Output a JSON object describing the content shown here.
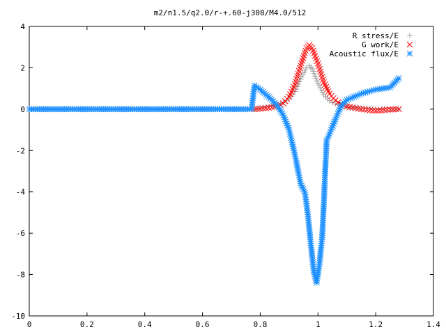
{
  "chart_data": {
    "type": "scatter",
    "title": "m2/n1.5/q2.0/r-+.60-j308/M4.0/512",
    "xlabel": "",
    "ylabel": "",
    "xlim": [
      0,
      1.4
    ],
    "ylim": [
      -10,
      4
    ],
    "x_ticks": [
      "0",
      "0.2",
      "0.4",
      "0.6",
      "0.8",
      "1",
      "1.2",
      "1.4"
    ],
    "x_tick_values": [
      0,
      0.2,
      0.4,
      0.6,
      0.8,
      1.0,
      1.2,
      1.4
    ],
    "y_ticks": [
      "4",
      "2",
      "0",
      "-2",
      "-4",
      "-6",
      "-8",
      "-10"
    ],
    "y_tick_values": [
      4,
      2,
      0,
      -2,
      -4,
      -6,
      -8,
      -10
    ],
    "grid": false,
    "legend_position": "top-right",
    "series": [
      {
        "name": "R stress/E",
        "marker": "+",
        "color": "#a0a0a0",
        "points": [
          [
            0.78,
            0.0
          ],
          [
            0.8,
            0.05
          ],
          [
            0.82,
            0.1
          ],
          [
            0.84,
            0.15
          ],
          [
            0.86,
            0.22
          ],
          [
            0.88,
            0.32
          ],
          [
            0.9,
            0.5
          ],
          [
            0.92,
            0.85
          ],
          [
            0.94,
            1.45
          ],
          [
            0.96,
            2.0
          ],
          [
            0.97,
            2.1
          ],
          [
            0.98,
            1.95
          ],
          [
            1.0,
            1.25
          ],
          [
            1.02,
            0.7
          ],
          [
            1.04,
            0.4
          ],
          [
            1.06,
            0.25
          ],
          [
            1.08,
            0.16
          ],
          [
            1.1,
            0.1
          ],
          [
            1.15,
            0.05
          ],
          [
            1.2,
            0.02
          ],
          [
            1.25,
            0.0
          ],
          [
            1.28,
            0.0
          ]
        ]
      },
      {
        "name": "G work/E",
        "marker": "x",
        "color": "#ff0000",
        "points": [
          [
            0.78,
            0.0
          ],
          [
            0.8,
            0.02
          ],
          [
            0.82,
            0.05
          ],
          [
            0.84,
            0.09
          ],
          [
            0.86,
            0.15
          ],
          [
            0.88,
            0.28
          ],
          [
            0.9,
            0.6
          ],
          [
            0.92,
            1.2
          ],
          [
            0.94,
            2.1
          ],
          [
            0.96,
            2.95
          ],
          [
            0.97,
            3.1
          ],
          [
            0.98,
            2.95
          ],
          [
            1.0,
            2.2
          ],
          [
            1.02,
            1.3
          ],
          [
            1.04,
            0.75
          ],
          [
            1.06,
            0.42
          ],
          [
            1.08,
            0.25
          ],
          [
            1.1,
            0.13
          ],
          [
            1.15,
            0.0
          ],
          [
            1.2,
            -0.08
          ],
          [
            1.25,
            -0.02
          ],
          [
            1.28,
            0.0
          ]
        ]
      },
      {
        "name": "Acoustic flux/E",
        "marker": "*",
        "color": "#1e90ff",
        "points": [
          [
            0.0,
            0.0
          ],
          [
            0.2,
            0.0
          ],
          [
            0.4,
            0.0
          ],
          [
            0.6,
            0.0
          ],
          [
            0.77,
            0.0
          ],
          [
            0.78,
            1.15
          ],
          [
            0.8,
            0.95
          ],
          [
            0.82,
            0.7
          ],
          [
            0.84,
            0.45
          ],
          [
            0.86,
            0.15
          ],
          [
            0.88,
            -0.3
          ],
          [
            0.9,
            -1.0
          ],
          [
            0.92,
            -2.2
          ],
          [
            0.94,
            -3.6
          ],
          [
            0.955,
            -4.05
          ],
          [
            0.965,
            -5.1
          ],
          [
            0.975,
            -6.5
          ],
          [
            0.985,
            -7.8
          ],
          [
            0.995,
            -8.4
          ],
          [
            1.005,
            -7.5
          ],
          [
            1.015,
            -6.1
          ],
          [
            1.02,
            -4.6
          ],
          [
            1.025,
            -3.0
          ],
          [
            1.03,
            -1.5
          ],
          [
            1.04,
            -1.2
          ],
          [
            1.06,
            -0.5
          ],
          [
            1.08,
            0.15
          ],
          [
            1.1,
            0.45
          ],
          [
            1.15,
            0.75
          ],
          [
            1.2,
            0.95
          ],
          [
            1.25,
            1.05
          ],
          [
            1.28,
            1.5
          ]
        ]
      }
    ]
  }
}
